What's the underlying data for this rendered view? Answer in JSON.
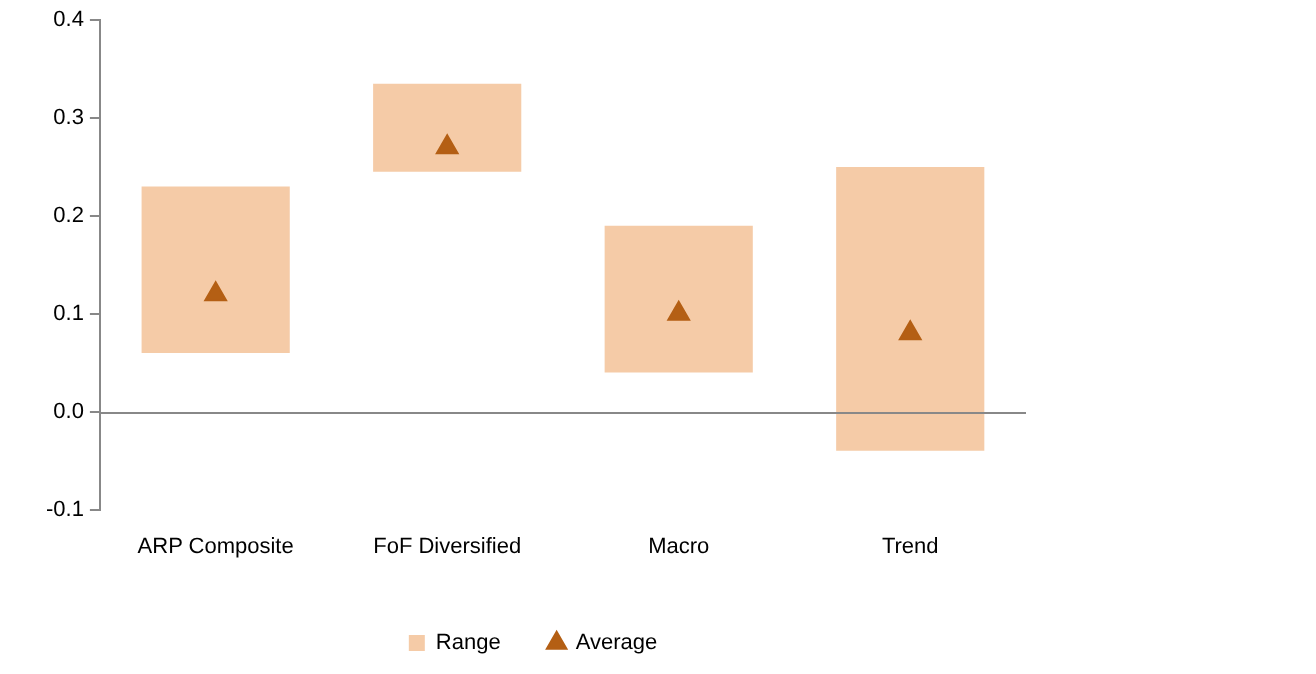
{
  "chart_data": {
    "type": "bar",
    "categories": [
      "ARP Composite",
      "FoF Diversified",
      "Macro",
      "Trend"
    ],
    "series": [
      {
        "name": "Range",
        "color": "#f5cba7",
        "base": [
          0.06,
          0.245,
          0.04,
          -0.04
        ],
        "values": [
          0.17,
          0.09,
          0.15,
          0.29
        ]
      },
      {
        "name": "Average",
        "type": "scatter",
        "color": "#b45f14",
        "x": [
          "ARP Composite",
          "FoF Diversified",
          "Macro",
          "Trend"
        ],
        "values": [
          0.12,
          0.27,
          0.1,
          0.08
        ]
      }
    ],
    "ylim": [
      -0.1,
      0.4
    ],
    "yticks": [
      {
        "value": -0.1,
        "label": "-0.1"
      },
      {
        "value": 0,
        "label": "0.0"
      },
      {
        "value": 0.1,
        "label": "0.1"
      },
      {
        "value": 0.2,
        "label": "0.2"
      },
      {
        "value": 0.3,
        "label": "0.3"
      },
      {
        "value": 0.4,
        "label": "0.4"
      }
    ],
    "legend": "bottom",
    "marker": "triangle"
  }
}
